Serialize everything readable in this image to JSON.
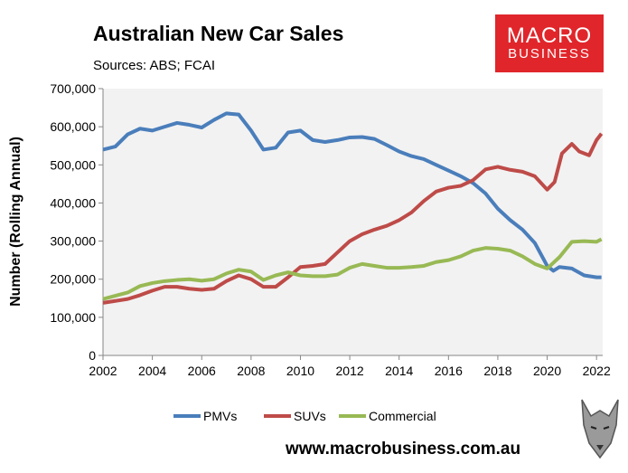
{
  "header": {
    "title": "Australian New Car Sales",
    "sources": "Sources: ABS; FCAI"
  },
  "logo": {
    "line1": "MACRO",
    "line2": "BUSINESS",
    "color": "#e0262b"
  },
  "footer": {
    "url": "www.macrobusiness.com.au"
  },
  "chart_data": {
    "type": "line",
    "title": "Australian New Car Sales",
    "ylabel": "Number (Rolling Annual)",
    "xlabel": "",
    "ylim": [
      0,
      700000
    ],
    "xlim": [
      2002,
      2022.3
    ],
    "yticks": [
      "0",
      "100,000",
      "200,000",
      "300,000",
      "400,000",
      "500,000",
      "600,000",
      "700,000"
    ],
    "xticks": [
      "2002",
      "2004",
      "2006",
      "2008",
      "2010",
      "2012",
      "2014",
      "2016",
      "2018",
      "2020",
      "2022"
    ],
    "legend": "bottom",
    "grid": false,
    "background": "#f2f2f2",
    "series": [
      {
        "name": "PMVs",
        "color": "#4a7ebb",
        "points": [
          [
            2002,
            540000
          ],
          [
            2002.5,
            548000
          ],
          [
            2003,
            580000
          ],
          [
            2003.5,
            595000
          ],
          [
            2004,
            590000
          ],
          [
            2004.5,
            600000
          ],
          [
            2005,
            610000
          ],
          [
            2005.5,
            605000
          ],
          [
            2006,
            598000
          ],
          [
            2006.5,
            618000
          ],
          [
            2007,
            635000
          ],
          [
            2007.5,
            632000
          ],
          [
            2008,
            590000
          ],
          [
            2008.5,
            540000
          ],
          [
            2009,
            545000
          ],
          [
            2009.5,
            585000
          ],
          [
            2010,
            590000
          ],
          [
            2010.5,
            565000
          ],
          [
            2011,
            560000
          ],
          [
            2011.5,
            565000
          ],
          [
            2012,
            572000
          ],
          [
            2012.5,
            573000
          ],
          [
            2013,
            568000
          ],
          [
            2013.5,
            552000
          ],
          [
            2014,
            535000
          ],
          [
            2014.5,
            523000
          ],
          [
            2015,
            515000
          ],
          [
            2015.5,
            500000
          ],
          [
            2016,
            485000
          ],
          [
            2016.5,
            470000
          ],
          [
            2017,
            452000
          ],
          [
            2017.5,
            425000
          ],
          [
            2018,
            385000
          ],
          [
            2018.5,
            355000
          ],
          [
            2019,
            330000
          ],
          [
            2019.5,
            295000
          ],
          [
            2020,
            235000
          ],
          [
            2020.25,
            222000
          ],
          [
            2020.5,
            232000
          ],
          [
            2021,
            228000
          ],
          [
            2021.5,
            210000
          ],
          [
            2022,
            205000
          ],
          [
            2022.2,
            205000
          ]
        ]
      },
      {
        "name": "SUVs",
        "color": "#be4b48",
        "points": [
          [
            2002,
            138000
          ],
          [
            2003,
            148000
          ],
          [
            2003.5,
            158000
          ],
          [
            2004,
            170000
          ],
          [
            2004.5,
            180000
          ],
          [
            2005,
            180000
          ],
          [
            2005.5,
            175000
          ],
          [
            2006,
            172000
          ],
          [
            2006.5,
            175000
          ],
          [
            2007,
            195000
          ],
          [
            2007.5,
            210000
          ],
          [
            2008,
            200000
          ],
          [
            2008.5,
            180000
          ],
          [
            2009,
            180000
          ],
          [
            2009.5,
            205000
          ],
          [
            2010,
            232000
          ],
          [
            2010.5,
            235000
          ],
          [
            2011,
            240000
          ],
          [
            2011.5,
            270000
          ],
          [
            2012,
            300000
          ],
          [
            2012.5,
            318000
          ],
          [
            2013,
            330000
          ],
          [
            2013.5,
            340000
          ],
          [
            2014,
            355000
          ],
          [
            2014.5,
            375000
          ],
          [
            2015,
            405000
          ],
          [
            2015.5,
            430000
          ],
          [
            2016,
            440000
          ],
          [
            2016.5,
            445000
          ],
          [
            2017,
            460000
          ],
          [
            2017.5,
            488000
          ],
          [
            2018,
            495000
          ],
          [
            2018.5,
            487000
          ],
          [
            2019,
            482000
          ],
          [
            2019.5,
            470000
          ],
          [
            2020,
            435000
          ],
          [
            2020.3,
            455000
          ],
          [
            2020.6,
            530000
          ],
          [
            2021,
            555000
          ],
          [
            2021.3,
            535000
          ],
          [
            2021.7,
            525000
          ],
          [
            2022,
            565000
          ],
          [
            2022.2,
            582000
          ]
        ]
      },
      {
        "name": "Commercial",
        "color": "#98b954",
        "points": [
          [
            2002,
            148000
          ],
          [
            2003,
            165000
          ],
          [
            2003.5,
            182000
          ],
          [
            2004,
            190000
          ],
          [
            2004.5,
            195000
          ],
          [
            2005,
            198000
          ],
          [
            2005.5,
            200000
          ],
          [
            2006,
            196000
          ],
          [
            2006.5,
            200000
          ],
          [
            2007,
            215000
          ],
          [
            2007.5,
            225000
          ],
          [
            2008,
            220000
          ],
          [
            2008.5,
            198000
          ],
          [
            2009,
            210000
          ],
          [
            2009.5,
            218000
          ],
          [
            2010,
            210000
          ],
          [
            2010.5,
            208000
          ],
          [
            2011,
            208000
          ],
          [
            2011.5,
            212000
          ],
          [
            2012,
            230000
          ],
          [
            2012.5,
            240000
          ],
          [
            2013,
            235000
          ],
          [
            2013.5,
            230000
          ],
          [
            2014,
            230000
          ],
          [
            2014.5,
            232000
          ],
          [
            2015,
            235000
          ],
          [
            2015.5,
            245000
          ],
          [
            2016,
            250000
          ],
          [
            2016.5,
            260000
          ],
          [
            2017,
            275000
          ],
          [
            2017.5,
            282000
          ],
          [
            2018,
            280000
          ],
          [
            2018.5,
            275000
          ],
          [
            2019,
            260000
          ],
          [
            2019.5,
            240000
          ],
          [
            2020,
            228000
          ],
          [
            2020.5,
            258000
          ],
          [
            2021,
            298000
          ],
          [
            2021.5,
            300000
          ],
          [
            2022,
            298000
          ],
          [
            2022.2,
            305000
          ]
        ]
      }
    ]
  }
}
